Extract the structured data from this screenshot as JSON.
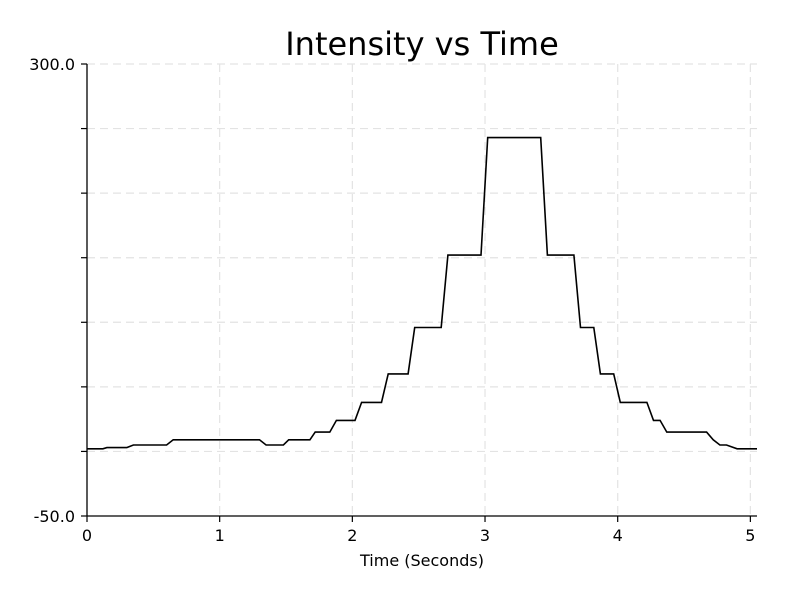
{
  "chart_data": {
    "type": "line",
    "title": "Intensity vs Time",
    "xlabel": "Time (Seconds)",
    "ylabel": "",
    "xlim": [
      0,
      5.05
    ],
    "ylim": [
      -50,
      300
    ],
    "grid": true,
    "x_ticks": [
      0,
      1,
      2,
      3,
      4,
      5
    ],
    "x_tick_labels": [
      "0",
      "1",
      "2",
      "3",
      "4",
      "5"
    ],
    "y_ticks": [
      -50,
      0,
      50,
      100,
      150,
      200,
      250,
      300
    ],
    "y_tick_labels": [
      "-50.0",
      "",
      "",
      "",
      "",
      "",
      "",
      "300.0"
    ],
    "series": [
      {
        "x": [
          0.0,
          0.12,
          0.15,
          0.3,
          0.35,
          0.6,
          0.65,
          1.3,
          1.35,
          1.48,
          1.52,
          1.68,
          1.72,
          1.83,
          1.88,
          2.02,
          2.07,
          2.22,
          2.27,
          2.42,
          2.47,
          2.67,
          2.72,
          2.97,
          3.02,
          3.42,
          3.47,
          3.67,
          3.72,
          3.82,
          3.87,
          3.97,
          4.02,
          4.22,
          4.27,
          4.32,
          4.37,
          4.67,
          4.72,
          4.77,
          4.82,
          4.9,
          5.05
        ],
        "y": [
          2,
          2,
          3,
          3,
          5,
          5,
          9,
          9,
          5,
          5,
          9,
          9,
          15,
          15,
          24,
          24,
          38,
          38,
          60,
          60,
          96,
          96,
          152,
          152,
          243,
          243,
          152,
          152,
          96,
          96,
          60,
          60,
          38,
          38,
          24,
          24,
          15,
          15,
          9,
          5,
          5,
          2,
          2
        ]
      }
    ]
  }
}
